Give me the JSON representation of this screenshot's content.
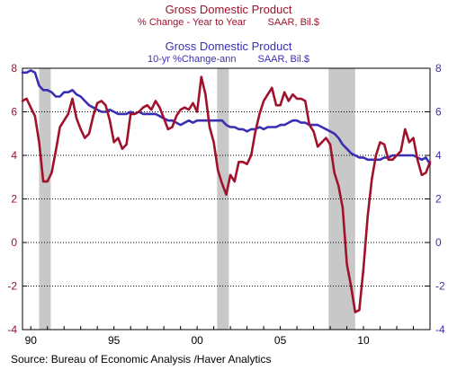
{
  "titles": {
    "series1_title": "Gross Domestic Product",
    "series1_subtitle_left": "% Change - Year to Year",
    "series1_subtitle_right": "SAAR, Bil.$",
    "series2_title": "Gross Domestic Product",
    "series2_subtitle_left": "10-yr %Change-ann",
    "series2_subtitle_right": "SAAR, Bil.$"
  },
  "source": "Source:  Bureau of Economic Analysis /Haver Analytics",
  "colors": {
    "series1": "#a0122b",
    "series2": "#3a2fb3",
    "recession": "#c8c8c8",
    "grid": "#000000"
  },
  "chart_data": {
    "type": "line",
    "xlim": [
      1989.5,
      2014.0
    ],
    "ylim": [
      -4,
      8
    ],
    "y_ticks": [
      -4,
      -2,
      0,
      2,
      4,
      6,
      8
    ],
    "y_tick_labels_left": [
      "-4",
      "-2",
      "0",
      "2",
      "4",
      "6",
      "8"
    ],
    "y_tick_labels_right": [
      "-4",
      "-2",
      "0",
      "2",
      "4",
      "6",
      "8"
    ],
    "x_ticks": [
      1990,
      1995,
      2000,
      2005,
      2010
    ],
    "x_tick_labels": [
      "90",
      "95",
      "00",
      "05",
      "10"
    ],
    "grid": "horizontal dotted",
    "recessions": [
      [
        1990.5,
        1991.2
      ],
      [
        2001.2,
        2001.9
      ],
      [
        2007.9,
        2009.5
      ]
    ],
    "series": [
      {
        "points": [
          [
            1989.5,
            6.5
          ],
          [
            1989.75,
            6.6
          ],
          [
            1990.0,
            6.2
          ],
          [
            1990.25,
            5.8
          ],
          [
            1990.5,
            4.6
          ],
          [
            1990.75,
            2.8
          ],
          [
            1991.0,
            2.8
          ],
          [
            1991.25,
            3.2
          ],
          [
            1991.5,
            4.2
          ],
          [
            1991.75,
            5.3
          ],
          [
            1992.0,
            5.6
          ],
          [
            1992.25,
            5.9
          ],
          [
            1992.5,
            6.6
          ],
          [
            1992.75,
            5.7
          ],
          [
            1993.0,
            5.2
          ],
          [
            1993.25,
            4.8
          ],
          [
            1993.5,
            5.0
          ],
          [
            1993.75,
            5.8
          ],
          [
            1994.0,
            6.4
          ],
          [
            1994.25,
            6.5
          ],
          [
            1994.5,
            6.3
          ],
          [
            1994.75,
            5.6
          ],
          [
            1995.0,
            4.6
          ],
          [
            1995.25,
            4.8
          ],
          [
            1995.5,
            4.3
          ],
          [
            1995.75,
            4.5
          ],
          [
            1996.0,
            5.9
          ],
          [
            1996.25,
            5.9
          ],
          [
            1996.5,
            6.0
          ],
          [
            1996.75,
            6.2
          ],
          [
            1997.0,
            6.3
          ],
          [
            1997.25,
            6.1
          ],
          [
            1997.5,
            6.5
          ],
          [
            1997.75,
            6.2
          ],
          [
            1998.0,
            5.7
          ],
          [
            1998.25,
            5.2
          ],
          [
            1998.5,
            5.3
          ],
          [
            1998.75,
            5.8
          ],
          [
            1999.0,
            6.1
          ],
          [
            1999.25,
            6.2
          ],
          [
            1999.5,
            6.1
          ],
          [
            1999.75,
            6.4
          ],
          [
            2000.0,
            6.0
          ],
          [
            2000.25,
            7.6
          ],
          [
            2000.5,
            6.8
          ],
          [
            2000.75,
            5.3
          ],
          [
            2001.0,
            4.6
          ],
          [
            2001.25,
            3.3
          ],
          [
            2001.5,
            2.7
          ],
          [
            2001.75,
            2.2
          ],
          [
            2002.0,
            3.1
          ],
          [
            2002.25,
            2.8
          ],
          [
            2002.5,
            3.7
          ],
          [
            2002.75,
            3.7
          ],
          [
            2003.0,
            3.6
          ],
          [
            2003.25,
            4.0
          ],
          [
            2003.5,
            5.1
          ],
          [
            2003.75,
            5.9
          ],
          [
            2004.0,
            6.5
          ],
          [
            2004.25,
            6.8
          ],
          [
            2004.5,
            7.1
          ],
          [
            2004.75,
            6.3
          ],
          [
            2005.0,
            6.3
          ],
          [
            2005.25,
            6.9
          ],
          [
            2005.5,
            6.5
          ],
          [
            2005.75,
            6.8
          ],
          [
            2006.0,
            6.6
          ],
          [
            2006.25,
            6.6
          ],
          [
            2006.5,
            6.5
          ],
          [
            2006.75,
            5.4
          ],
          [
            2007.0,
            5.1
          ],
          [
            2007.25,
            4.4
          ],
          [
            2007.5,
            4.6
          ],
          [
            2007.75,
            4.8
          ],
          [
            2008.0,
            4.5
          ],
          [
            2008.25,
            3.2
          ],
          [
            2008.5,
            2.6
          ],
          [
            2008.75,
            1.6
          ],
          [
            2009.0,
            -1.0
          ],
          [
            2009.25,
            -2.0
          ],
          [
            2009.5,
            -3.2
          ],
          [
            2009.75,
            -3.1
          ],
          [
            2010.0,
            -1.2
          ],
          [
            2010.25,
            1.2
          ],
          [
            2010.5,
            2.9
          ],
          [
            2010.75,
            4.0
          ],
          [
            2011.0,
            4.6
          ],
          [
            2011.25,
            4.5
          ],
          [
            2011.5,
            3.8
          ],
          [
            2011.75,
            3.8
          ],
          [
            2012.0,
            4.0
          ],
          [
            2012.25,
            4.2
          ],
          [
            2012.5,
            5.2
          ],
          [
            2012.75,
            4.6
          ],
          [
            2013.0,
            4.8
          ],
          [
            2013.25,
            3.8
          ],
          [
            2013.5,
            3.1
          ],
          [
            2013.75,
            3.2
          ],
          [
            2014.0,
            3.7
          ]
        ]
      },
      {
        "points": [
          [
            1989.5,
            7.8
          ],
          [
            1989.75,
            7.8
          ],
          [
            1990.0,
            7.9
          ],
          [
            1990.25,
            7.8
          ],
          [
            1990.5,
            7.2
          ],
          [
            1990.75,
            7.0
          ],
          [
            1991.0,
            7.0
          ],
          [
            1991.25,
            6.9
          ],
          [
            1991.5,
            6.7
          ],
          [
            1991.75,
            6.7
          ],
          [
            1992.0,
            6.9
          ],
          [
            1992.25,
            6.9
          ],
          [
            1992.5,
            7.0
          ],
          [
            1992.75,
            6.8
          ],
          [
            1993.0,
            6.7
          ],
          [
            1993.25,
            6.5
          ],
          [
            1993.5,
            6.3
          ],
          [
            1993.75,
            6.2
          ],
          [
            1994.0,
            6.1
          ],
          [
            1994.25,
            6.0
          ],
          [
            1994.5,
            6.0
          ],
          [
            1994.75,
            6.1
          ],
          [
            1995.0,
            6.0
          ],
          [
            1995.25,
            5.9
          ],
          [
            1995.5,
            5.9
          ],
          [
            1995.75,
            5.9
          ],
          [
            1996.0,
            6.0
          ],
          [
            1996.25,
            5.9
          ],
          [
            1996.5,
            6.0
          ],
          [
            1996.75,
            5.9
          ],
          [
            1997.0,
            5.9
          ],
          [
            1997.25,
            5.9
          ],
          [
            1997.5,
            5.9
          ],
          [
            1997.75,
            5.8
          ],
          [
            1998.0,
            5.7
          ],
          [
            1998.25,
            5.6
          ],
          [
            1998.5,
            5.6
          ],
          [
            1998.75,
            5.5
          ],
          [
            1999.0,
            5.4
          ],
          [
            1999.25,
            5.5
          ],
          [
            1999.5,
            5.6
          ],
          [
            1999.75,
            5.5
          ],
          [
            2000.0,
            5.6
          ],
          [
            2000.25,
            5.6
          ],
          [
            2000.5,
            5.6
          ],
          [
            2000.75,
            5.6
          ],
          [
            2001.0,
            5.6
          ],
          [
            2001.25,
            5.6
          ],
          [
            2001.5,
            5.6
          ],
          [
            2001.75,
            5.4
          ],
          [
            2002.0,
            5.3
          ],
          [
            2002.25,
            5.3
          ],
          [
            2002.5,
            5.2
          ],
          [
            2002.75,
            5.2
          ],
          [
            2003.0,
            5.1
          ],
          [
            2003.25,
            5.2
          ],
          [
            2003.5,
            5.2
          ],
          [
            2003.75,
            5.3
          ],
          [
            2004.0,
            5.2
          ],
          [
            2004.25,
            5.3
          ],
          [
            2004.5,
            5.3
          ],
          [
            2004.75,
            5.3
          ],
          [
            2005.0,
            5.4
          ],
          [
            2005.25,
            5.4
          ],
          [
            2005.5,
            5.5
          ],
          [
            2005.75,
            5.6
          ],
          [
            2006.0,
            5.6
          ],
          [
            2006.25,
            5.5
          ],
          [
            2006.5,
            5.5
          ],
          [
            2006.75,
            5.4
          ],
          [
            2007.0,
            5.4
          ],
          [
            2007.25,
            5.4
          ],
          [
            2007.5,
            5.3
          ],
          [
            2007.75,
            5.2
          ],
          [
            2008.0,
            5.1
          ],
          [
            2008.25,
            5.0
          ],
          [
            2008.5,
            4.8
          ],
          [
            2008.75,
            4.5
          ],
          [
            2009.0,
            4.3
          ],
          [
            2009.25,
            4.1
          ],
          [
            2009.5,
            4.0
          ],
          [
            2009.75,
            3.9
          ],
          [
            2010.0,
            3.9
          ],
          [
            2010.25,
            3.8
          ],
          [
            2010.5,
            3.8
          ],
          [
            2010.75,
            3.8
          ],
          [
            2011.0,
            3.8
          ],
          [
            2011.25,
            3.9
          ],
          [
            2011.5,
            3.9
          ],
          [
            2011.75,
            4.0
          ],
          [
            2012.0,
            4.0
          ],
          [
            2012.25,
            4.0
          ],
          [
            2012.5,
            4.0
          ],
          [
            2012.75,
            4.0
          ],
          [
            2013.0,
            4.0
          ],
          [
            2013.25,
            3.9
          ],
          [
            2013.5,
            3.8
          ],
          [
            2013.75,
            3.9
          ],
          [
            2014.0,
            3.6
          ]
        ]
      }
    ]
  }
}
